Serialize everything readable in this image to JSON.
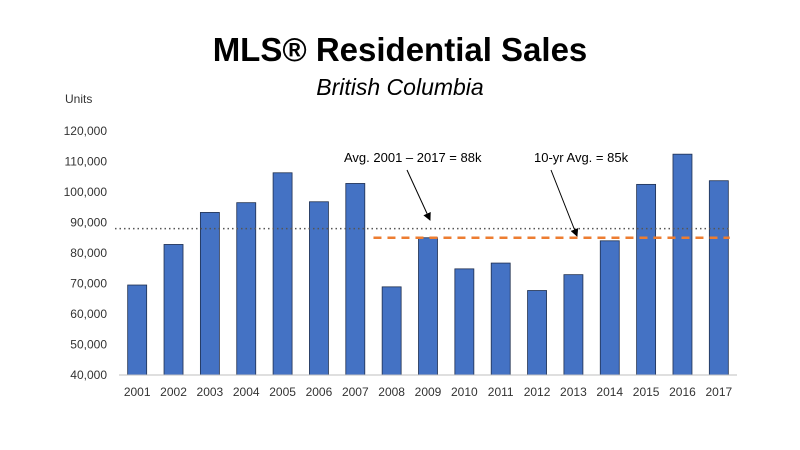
{
  "chart_data": {
    "type": "bar",
    "title": "MLS® Residential Sales",
    "subtitle": "British Columbia",
    "ylabel": "Units",
    "xlabel": "",
    "ylim": [
      40000,
      120000
    ],
    "ytick_step": 10000,
    "yticks": [
      "40,000",
      "50,000",
      "60,000",
      "70,000",
      "80,000",
      "90,000",
      "100,000",
      "110,000",
      "120,000"
    ],
    "grid": false,
    "categories": [
      "2001",
      "2002",
      "2003",
      "2004",
      "2005",
      "2006",
      "2007",
      "2008",
      "2009",
      "2010",
      "2011",
      "2012",
      "2013",
      "2014",
      "2015",
      "2016",
      "2017"
    ],
    "values": [
      69500,
      82800,
      93300,
      96500,
      106300,
      96800,
      102800,
      68900,
      85000,
      74800,
      76700,
      67700,
      72900,
      84000,
      102500,
      112400,
      103700
    ],
    "bar_color": "#4472C4",
    "reference_lines": [
      {
        "name": "avg-2001-2017",
        "value": 88000,
        "label": "Avg. 2001 – 2017 = 88k",
        "style": "dotted",
        "color": "#555555",
        "from": "2001",
        "to": "2017"
      },
      {
        "name": "ten-year-avg",
        "value": 85000,
        "label": "10-yr Avg. = 85k",
        "style": "dashed",
        "color": "#ED7D31",
        "from": "2008",
        "to": "2017"
      }
    ]
  }
}
